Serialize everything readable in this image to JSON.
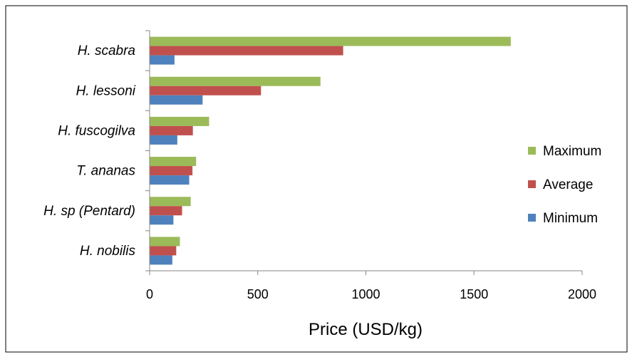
{
  "chart_data": {
    "type": "bar",
    "orientation": "horizontal",
    "categories": [
      "H. scabra",
      "H. lessoni",
      "H. fuscogilva",
      "T. ananas",
      "H. sp (Pentard)",
      "H. nobilis"
    ],
    "series": [
      {
        "name": "Maximum",
        "color": "#9bbb59",
        "values": [
          1670,
          790,
          275,
          215,
          190,
          140
        ]
      },
      {
        "name": "Average",
        "color": "#c0504d",
        "values": [
          895,
          515,
          200,
          198,
          150,
          123
        ]
      },
      {
        "name": "Minimum",
        "color": "#4f81bd",
        "values": [
          115,
          245,
          128,
          183,
          110,
          105
        ]
      }
    ],
    "x_ticks": [
      "0",
      "500",
      "1000",
      "1500",
      "2000"
    ],
    "xlim": [
      0,
      2000
    ],
    "xlabel": "Price (USD/kg)",
    "ylabel": "",
    "title": "",
    "grid": false,
    "legend_position": "right"
  }
}
